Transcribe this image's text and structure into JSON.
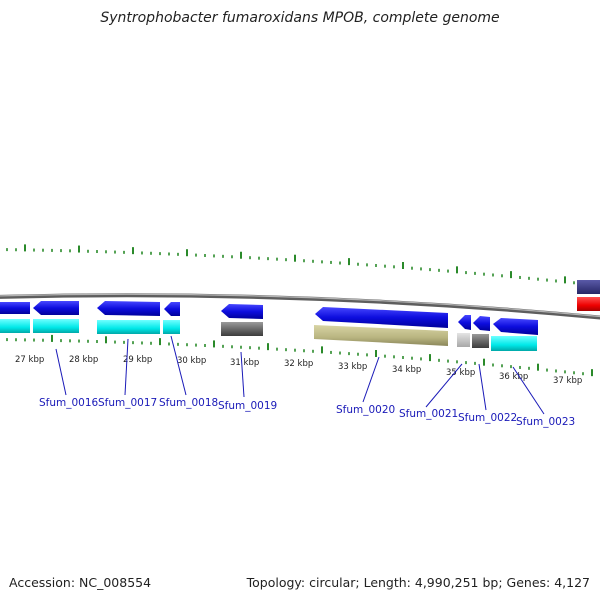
{
  "header": {
    "title": "Syntrophobacter fumaroxidans MPOB, complete genome"
  },
  "footer": {
    "accession": "Accession: NC_008554",
    "summary": "Topology: circular; Length: 4,990,251 bp; Genes: 4,127"
  },
  "scale": {
    "ticks": [
      "27 kbp",
      "28 kbp",
      "29 kbp",
      "30 kbp",
      "31 kbp",
      "32 kbp",
      "33 kbp",
      "34 kbp",
      "35 kbp",
      "36 kbp",
      "37 kbp"
    ]
  },
  "genes": [
    "Sfum_0016",
    "Sfum_0017",
    "Sfum_0018",
    "Sfum_0019",
    "Sfum_0020",
    "Sfum_0021",
    "Sfum_0022",
    "Sfum_0023"
  ],
  "colors": {
    "cds": "#1010e0",
    "annotation_bar": "#00e8e8",
    "gray_feature": "#606060",
    "light_gray_feature": "#c0c0c0",
    "khaki_feature": "#b8b480",
    "rna_purple": "#303080",
    "rna_red": "#ee0000",
    "backbone": "#808080",
    "ticks": "#2a8a2a",
    "label_text": "#1a1ab8"
  }
}
